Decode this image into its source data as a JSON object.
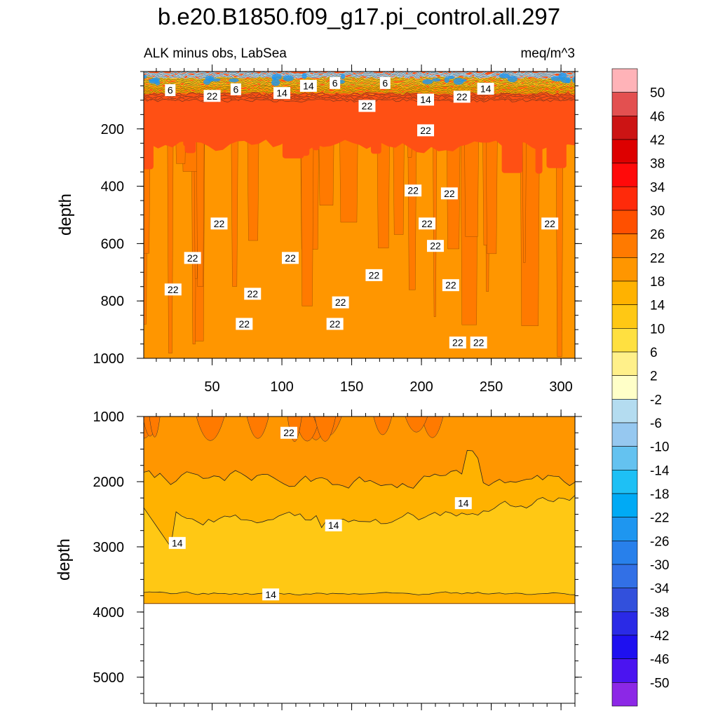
{
  "chart_data": {
    "type": "contour",
    "title": "b.e20.B1850.f09_g17.pi_control.all.297",
    "subtitle_left": "ALK minus obs, LabSea",
    "subtitle_right": "meq/m^3",
    "ylabel": "depth",
    "x": {
      "ticks": [
        50,
        100,
        150,
        200,
        250,
        300
      ],
      "range": [
        1,
        310
      ]
    },
    "panels": [
      {
        "name": "upper",
        "ylim": [
          0,
          1000
        ],
        "yticks": [
          200,
          400,
          600,
          800,
          1000
        ],
        "contour_labels": [
          {
            "v": "6",
            "x": 20,
            "y": 65
          },
          {
            "v": "22",
            "x": 50,
            "y": 85
          },
          {
            "v": "6",
            "x": 67,
            "y": 62
          },
          {
            "v": "14",
            "x": 100,
            "y": 75
          },
          {
            "v": "14",
            "x": 119,
            "y": 50
          },
          {
            "v": "6",
            "x": 138,
            "y": 40
          },
          {
            "v": "6",
            "x": 174,
            "y": 40
          },
          {
            "v": "22",
            "x": 161,
            "y": 120
          },
          {
            "v": "14",
            "x": 203,
            "y": 98
          },
          {
            "v": "22",
            "x": 229,
            "y": 88
          },
          {
            "v": "14",
            "x": 246,
            "y": 60
          },
          {
            "v": "22",
            "x": 203,
            "y": 205
          },
          {
            "v": "22",
            "x": 194,
            "y": 415
          },
          {
            "v": "22",
            "x": 220,
            "y": 425
          },
          {
            "v": "22",
            "x": 55,
            "y": 530
          },
          {
            "v": "22",
            "x": 204,
            "y": 530
          },
          {
            "v": "22",
            "x": 292,
            "y": 530
          },
          {
            "v": "22",
            "x": 36,
            "y": 650
          },
          {
            "v": "22",
            "x": 106,
            "y": 650
          },
          {
            "v": "22",
            "x": 210,
            "y": 608
          },
          {
            "v": "22",
            "x": 166,
            "y": 710
          },
          {
            "v": "22",
            "x": 22,
            "y": 760
          },
          {
            "v": "22",
            "x": 79,
            "y": 775
          },
          {
            "v": "22",
            "x": 142,
            "y": 805
          },
          {
            "v": "22",
            "x": 221,
            "y": 745
          },
          {
            "v": "22",
            "x": 73,
            "y": 880
          },
          {
            "v": "22",
            "x": 138,
            "y": 880
          },
          {
            "v": "22",
            "x": 226,
            "y": 945
          },
          {
            "v": "22",
            "x": 241,
            "y": 945
          }
        ]
      },
      {
        "name": "lower",
        "ylim": [
          1000,
          5400
        ],
        "yticks": [
          1000,
          2000,
          3000,
          4000,
          5000
        ],
        "bottom_depth": 3870,
        "contour_labels": [
          {
            "v": "22",
            "x": 105,
            "y": 1250
          },
          {
            "v": "14",
            "x": 230,
            "y": 2330
          },
          {
            "v": "14",
            "x": 137,
            "y": 2670
          },
          {
            "v": "14",
            "x": 25,
            "y": 2940
          },
          {
            "v": "14",
            "x": 92,
            "y": 3730
          }
        ]
      }
    ],
    "colorbar": {
      "levels": [
        "50",
        "46",
        "42",
        "38",
        "34",
        "30",
        "26",
        "22",
        "18",
        "14",
        "10",
        "6",
        "2",
        "-2",
        "-6",
        "-10",
        "-14",
        "-18",
        "-22",
        "-26",
        "-30",
        "-34",
        "-38",
        "-42",
        "-46",
        "-50"
      ],
      "colors": [
        "#ffb3b8",
        "#e35050",
        "#cc1414",
        "#dd0000",
        "#ff0a0a",
        "#ff2a0a",
        "#ff5000",
        "#ff7a00",
        "#ff9600",
        "#ffb200",
        "#ffc814",
        "#ffe040",
        "#fff08a",
        "#ffffc8",
        "#b4dcf0",
        "#96c8f0",
        "#64c2f0",
        "#1ec0f5",
        "#00aaf5",
        "#1e96f0",
        "#2880eb",
        "#3270e6",
        "#3250dc",
        "#2a2ae6",
        "#1e10f0",
        "#4b14f0",
        "#8c28e6"
      ]
    },
    "palette": {
      "upper_band": "#ff5014",
      "upper_base": "#ff7a00",
      "band_22": "#ff9600",
      "band_18": "#ffb200",
      "band_14": "#ffc814",
      "deep_blue": "#1e96f0",
      "light_blue": "#b4dcf0"
    }
  }
}
